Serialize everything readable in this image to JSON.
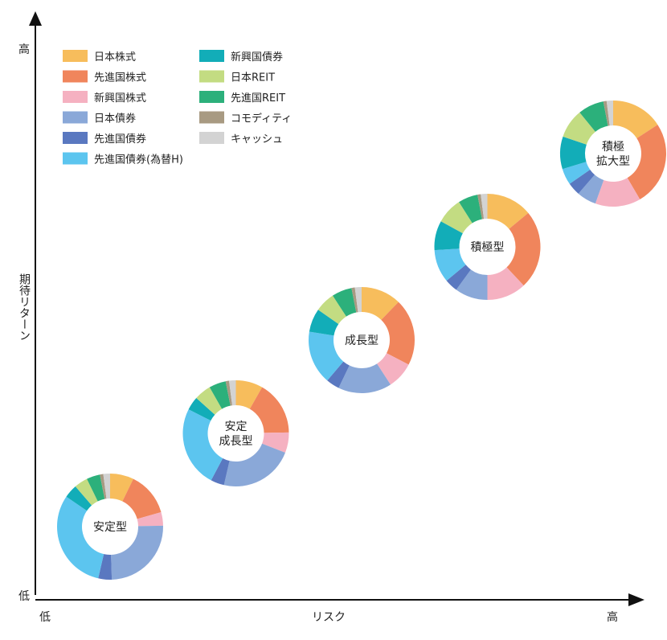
{
  "chart_data": {
    "type": "pie",
    "variant": "donut-scatter",
    "title": "",
    "xlabel": "リスク",
    "ylabel": "期待リターン",
    "x_low_label": "低",
    "x_high_label": "高",
    "y_low_label": "低",
    "y_high_label": "高",
    "legend_placement": "top-left",
    "categories": [
      "日本株式",
      "先進国株式",
      "新興国株式",
      "日本債券",
      "先進国債券",
      "先進国債券(為替H)",
      "新興国債券",
      "日本REIT",
      "先進国REIT",
      "コモディティ",
      "キャッシュ"
    ],
    "colors": [
      "#f7bd5c",
      "#f0855c",
      "#f5b1c1",
      "#8aa8d8",
      "#5a78c0",
      "#5cc5ef",
      "#12adb8",
      "#c3dc82",
      "#2cb07b",
      "#a89a82",
      "#d3d3d3"
    ],
    "series": [
      {
        "name": "安定型",
        "lines": [
          "安定型"
        ],
        "risk": 1,
        "return": 1,
        "values": [
          7,
          13,
          4,
          24,
          4,
          30,
          4,
          4,
          4,
          1,
          2
        ]
      },
      {
        "name": "安定成長型",
        "lines": [
          "安定",
          "成長型"
        ],
        "risk": 2,
        "return": 2,
        "values": [
          8,
          16,
          6,
          22,
          4,
          24,
          4,
          5,
          5,
          1,
          2
        ]
      },
      {
        "name": "成長型",
        "lines": [
          "成長型"
        ],
        "risk": 3,
        "return": 3,
        "values": [
          12,
          20,
          8,
          16,
          4,
          16,
          7,
          6,
          6,
          1,
          2
        ]
      },
      {
        "name": "積極型",
        "lines": [
          "積極型"
        ],
        "risk": 4,
        "return": 4,
        "values": [
          14,
          24,
          12,
          10,
          4,
          10,
          9,
          8,
          6,
          1,
          2
        ]
      },
      {
        "name": "積極拡大型",
        "lines": [
          "積極",
          "拡大型"
        ],
        "risk": 5,
        "return": 5,
        "values": [
          16,
          26,
          14,
          6,
          4,
          5,
          10,
          9,
          8,
          1,
          2
        ]
      }
    ]
  }
}
